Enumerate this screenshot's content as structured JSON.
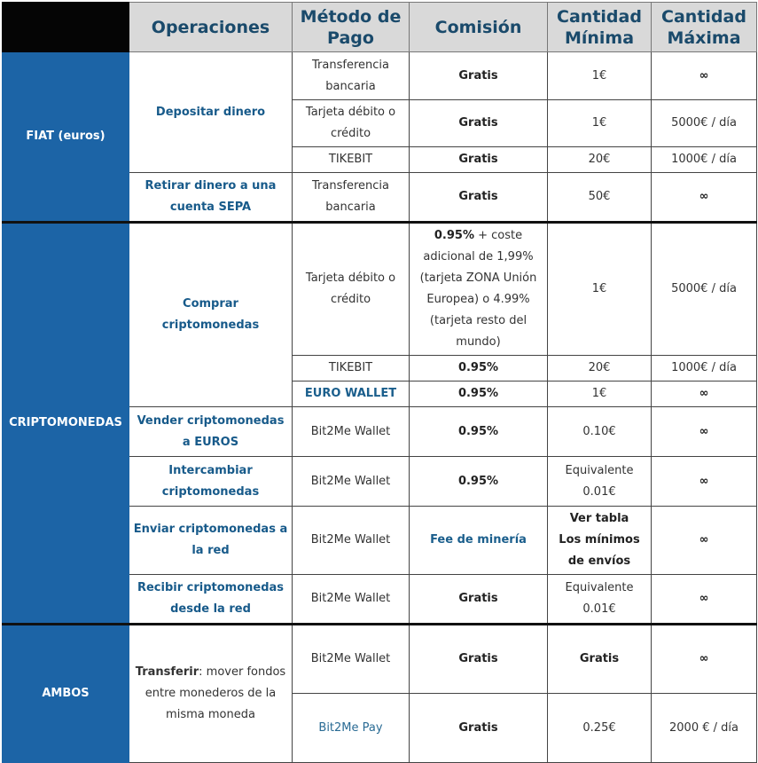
{
  "header": {
    "col1": "Operaciones",
    "col2": "Método de Pago",
    "col3": "Comisión",
    "col4": "Cantidad Mínima",
    "col5": "Cantidad Máxima"
  },
  "groups": {
    "fiat": "FIAT (euros)",
    "cripto": "CRIPTOMONEDAS",
    "ambos": "AMBOS"
  },
  "ops": {
    "depositar": "Depositar dinero",
    "retirar": "Retirar dinero a una cuenta SEPA",
    "comprar": "Comprar criptomonedas",
    "vender": "Vender criptomonedas a EUROS",
    "intercambiar": "Intercambiar criptomonedas",
    "enviar": "Enviar criptomonedas a la red",
    "recibir": "Recibir criptomonedas desde la red",
    "transferir_strong": "Transferir",
    "transferir_rest": ": mover fondos entre monederos de la misma moneda"
  },
  "rows": {
    "r1": {
      "method": "Transferencia bancaria",
      "fee": "Gratis",
      "min": "1€",
      "max": "∞"
    },
    "r2": {
      "method": "Tarjeta débito o crédito",
      "fee": "Gratis",
      "min": "1€",
      "max": "5000€ / día"
    },
    "r3": {
      "method": "TIKEBIT",
      "fee": "Gratis",
      "min": "20€",
      "max": "1000€ / día"
    },
    "r4": {
      "method": "Transferencia bancaria",
      "fee": "Gratis",
      "min": "50€",
      "max": "∞"
    },
    "r5": {
      "method": "Tarjeta débito o crédito",
      "fee_strong": "0.95%",
      "fee_rest": " + coste adicional de 1,99% (tarjeta ZONA Unión Europea) o 4.99% (tarjeta resto del mundo)",
      "min": "1€",
      "max": "5000€ / día"
    },
    "r6": {
      "method": "TIKEBIT",
      "fee": "0.95%",
      "min": "20€",
      "max": "1000€ / día"
    },
    "r7": {
      "method": "EURO WALLET",
      "fee": "0.95%",
      "min": "1€",
      "max": "∞"
    },
    "r8": {
      "method": "Bit2Me Wallet",
      "fee": "0.95%",
      "min": "0.10€",
      "max": "∞"
    },
    "r9": {
      "method": "Bit2Me Wallet",
      "fee": "0.95%",
      "min": "Equivalente 0.01€",
      "max": "∞"
    },
    "r10": {
      "method": "Bit2Me Wallet",
      "fee": "Fee de minería",
      "min_line1": "Ver tabla",
      "min_line2": "Los mínimos de envíos",
      "max": "∞"
    },
    "r11": {
      "method": "Bit2Me Wallet",
      "fee": "Gratis",
      "min": "Equivalente 0.01€",
      "max": "∞"
    },
    "r12": {
      "method": "Bit2Me Wallet",
      "fee": "Gratis",
      "min": "Gratis",
      "max": "∞"
    },
    "r13": {
      "method": "Bit2Me Pay",
      "fee": "Gratis",
      "min": "0.25€",
      "max": "2000 € / día"
    }
  }
}
